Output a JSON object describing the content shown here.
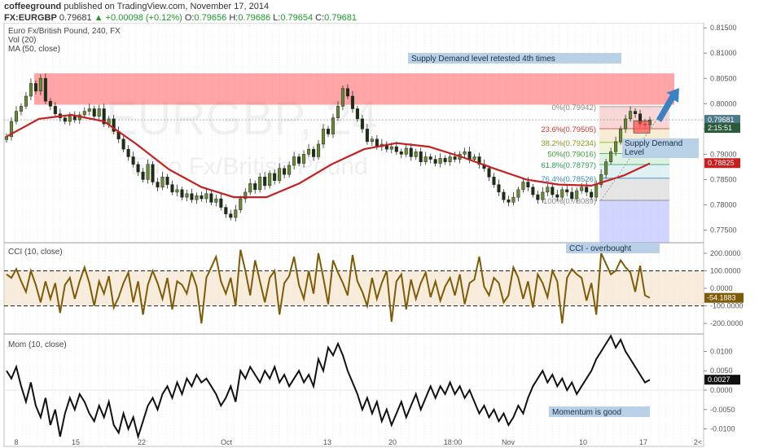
{
  "header": {
    "author": "coffeeground",
    "published_text": "published on TradingView.com, November 17, 2014",
    "symbol": "FX:EURGBP",
    "last": "0.79681",
    "change": "+0.00098 (+0.12%)",
    "o_label": "O:",
    "o": "0.79656",
    "h_label": "H:",
    "h": "0.79686",
    "l_label": "L:",
    "l": "0.79654",
    "c_label": "C:",
    "c": "0.79681"
  },
  "chart_data": [
    {
      "type": "candlestick",
      "panel": "price",
      "legend": [
        "Euro Fx/British Pound, 240, FX",
        "Vol (20)",
        "MA (50, close)"
      ],
      "watermark": "EURGBP, 24",
      "watermark_sub": "Euro Fx/British Pound",
      "x_ticks": [
        "8",
        "15",
        "22",
        "Oct",
        "13",
        "20",
        "18:00",
        "Nov",
        "10",
        "17",
        "2<"
      ],
      "y_ticks": [
        "0.81500",
        "0.81000",
        "0.80500",
        "0.80000",
        "0.79500",
        "0.79000",
        "0.78500",
        "0.78000",
        "0.77500"
      ],
      "ylim": [
        0.7725,
        0.816
      ],
      "series": [
        {
          "name": "EURGBP",
          "x": [
            0,
            6,
            12,
            18,
            24,
            30,
            36,
            42,
            48,
            54,
            60,
            66,
            72,
            78,
            84,
            90,
            96,
            102,
            108,
            114,
            120,
            126,
            132,
            138,
            144,
            150,
            156,
            162,
            168,
            174,
            180,
            186,
            192,
            198,
            204,
            210,
            216,
            222,
            228,
            234,
            240,
            246,
            252,
            258,
            264,
            270,
            276,
            282,
            288,
            294,
            300,
            306,
            312,
            318,
            324,
            330,
            336,
            342,
            348,
            354,
            360,
            366,
            372,
            378,
            384,
            390,
            396,
            402,
            408,
            414,
            420,
            426,
            432,
            438,
            444,
            450,
            456,
            462,
            468,
            474,
            480,
            486,
            492,
            498,
            504,
            510,
            516,
            522,
            528,
            534,
            540,
            546,
            552,
            558,
            564,
            570,
            576,
            582,
            588,
            594,
            600,
            606,
            612,
            618,
            624,
            630,
            636,
            642,
            648,
            654,
            660,
            666,
            672,
            678,
            684,
            690,
            696,
            702,
            708,
            714,
            720,
            726,
            732,
            738,
            744,
            750,
            756,
            762,
            768,
            774,
            780,
            786,
            792
          ],
          "close": [
            0.7935,
            0.7965,
            0.7985,
            0.7995,
            0.8015,
            0.804,
            0.8025,
            0.805,
            0.8005,
            0.7995,
            0.798,
            0.7972,
            0.7965,
            0.7975,
            0.7968,
            0.7978,
            0.7985,
            0.799,
            0.7975,
            0.799,
            0.796,
            0.797,
            0.7945,
            0.793,
            0.791,
            0.7895,
            0.788,
            0.7865,
            0.785,
            0.788,
            0.7845,
            0.7835,
            0.7855,
            0.784,
            0.7825,
            0.783,
            0.7815,
            0.7822,
            0.781,
            0.7818,
            0.7812,
            0.7822,
            0.7805,
            0.7812,
            0.7795,
            0.7782,
            0.7775,
            0.779,
            0.7812,
            0.7825,
            0.7842,
            0.783,
            0.7855,
            0.7838,
            0.7862,
            0.7848,
            0.7872,
            0.786,
            0.7878,
            0.7895,
            0.7882,
            0.79,
            0.791,
            0.7895,
            0.792,
            0.795,
            0.794,
            0.7972,
            0.7995,
            0.803,
            0.8015,
            0.799,
            0.797,
            0.795,
            0.7925,
            0.793,
            0.7915,
            0.792,
            0.791,
            0.7915,
            0.7905,
            0.79,
            0.7912,
            0.7895,
            0.7905,
            0.7885,
            0.7895,
            0.789,
            0.7882,
            0.7892,
            0.7885,
            0.7895,
            0.789,
            0.79,
            0.7905,
            0.789,
            0.7895,
            0.788,
            0.7872,
            0.7855,
            0.784,
            0.7825,
            0.781,
            0.7805,
            0.7815,
            0.783,
            0.7845,
            0.7835,
            0.782,
            0.781,
            0.7825,
            0.7835,
            0.782,
            0.7815,
            0.783,
            0.7825,
            0.7812,
            0.7828,
            0.7835,
            0.7825,
            0.7815,
            0.784,
            0.786,
            0.7885,
            0.7905,
            0.7925,
            0.795,
            0.797,
            0.7985,
            0.798,
            0.796,
            0.7958,
            0.7968
          ]
        },
        {
          "name": "MA (50, close)",
          "x": [
            0,
            40,
            80,
            120,
            160,
            200,
            240,
            280,
            320,
            360,
            400,
            440,
            480,
            520,
            560,
            600,
            640,
            680,
            720,
            760,
            792
          ],
          "values": [
            0.7935,
            0.797,
            0.7978,
            0.7965,
            0.792,
            0.787,
            0.7835,
            0.7815,
            0.7815,
            0.7842,
            0.788,
            0.791,
            0.7922,
            0.7915,
            0.7895,
            0.7872,
            0.785,
            0.784,
            0.7838,
            0.7858,
            0.7882
          ]
        }
      ],
      "zones": [
        {
          "label": "Supply Demand level retested 4th times",
          "from": 0.7998,
          "to": 0.806
        }
      ],
      "fib_levels": [
        {
          "label": "0%(0.79942)",
          "value": 0.79942,
          "color": "#888888"
        },
        {
          "label": "23.6%(0.79505)",
          "value": 0.79505,
          "color": "#d0342c"
        },
        {
          "label": "38.2%(0.79234)",
          "value": 0.79234,
          "color": "#8a9a1a"
        },
        {
          "label": "50%(0.79016)",
          "value": 0.79016,
          "color": "#3aa03a"
        },
        {
          "label": "61.8%(0.78797)",
          "value": 0.78797,
          "color": "#2f9a5a"
        },
        {
          "label": "76.4%(0.78526)",
          "value": 0.78526,
          "color": "#3a8ab8"
        },
        {
          "label": "100%(0.78089)",
          "value": 0.78089,
          "color": "#888888"
        }
      ],
      "annotations": [
        "Supply Demand level retested 4th times",
        "Supply Demand Level"
      ],
      "price_tags": [
        {
          "label": "0.79681",
          "value": 0.79681,
          "color": "#4a7a8a"
        },
        {
          "label": "2:15:51",
          "value": 0.7952,
          "color": "#2a5a3a"
        },
        {
          "label": "0.78825",
          "value": 0.78825,
          "color": "#c81e1e"
        }
      ]
    },
    {
      "type": "line",
      "panel": "cci",
      "legend": "CCI (10, close)",
      "annotation": "CCI - overbought",
      "y_ticks": [
        "200.0000",
        "100.0000",
        "0.0000",
        "-100.0000",
        "-200.0000"
      ],
      "ylim": [
        -260,
        260
      ],
      "bands": [
        -100,
        100
      ],
      "price_tag": {
        "label": "-54.1883",
        "value": -54.1883
      },
      "series": [
        {
          "x": [
            0,
            6,
            12,
            18,
            24,
            30,
            36,
            42,
            48,
            54,
            60,
            66,
            72,
            78,
            84,
            90,
            96,
            102,
            108,
            114,
            120,
            126,
            132,
            138,
            144,
            150,
            156,
            162,
            168,
            174,
            180,
            186,
            192,
            198,
            204,
            210,
            216,
            222,
            228,
            234,
            240,
            246,
            252,
            258,
            264,
            270,
            276,
            282,
            288,
            294,
            300,
            306,
            312,
            318,
            324,
            330,
            336,
            342,
            348,
            354,
            360,
            366,
            372,
            378,
            384,
            390,
            396,
            402,
            408,
            414,
            420,
            426,
            432,
            438,
            444,
            450,
            456,
            462,
            468,
            474,
            480,
            486,
            492,
            498,
            504,
            510,
            516,
            522,
            528,
            534,
            540,
            546,
            552,
            558,
            564,
            570,
            576,
            582,
            588,
            594,
            600,
            606,
            612,
            618,
            624,
            630,
            636,
            642,
            648,
            654,
            660,
            666,
            672,
            678,
            684,
            690,
            696,
            702,
            708,
            714,
            720,
            726,
            732,
            738,
            744,
            750,
            756,
            762,
            768,
            774,
            780,
            786,
            792
          ],
          "values": [
            80,
            60,
            110,
            40,
            -20,
            100,
            20,
            -80,
            40,
            -60,
            30,
            -140,
            20,
            60,
            -60,
            40,
            120,
            30,
            -100,
            40,
            -30,
            70,
            -110,
            -50,
            30,
            90,
            -80,
            40,
            -150,
            20,
            100,
            30,
            -60,
            60,
            -120,
            40,
            20,
            -30,
            90,
            10,
            -200,
            60,
            120,
            180,
            40,
            -30,
            60,
            -100,
            220,
            100,
            -40,
            160,
            40,
            -80,
            60,
            100,
            -150,
            30,
            70,
            180,
            20,
            -60,
            100,
            -30,
            200,
            60,
            -90,
            160,
            90,
            30,
            -40,
            190,
            40,
            -20,
            -100,
            60,
            -60,
            30,
            100,
            -190,
            40,
            80,
            -120,
            50,
            -60,
            30,
            90,
            -50,
            40,
            -70,
            10,
            60,
            -40,
            80,
            -90,
            30,
            50,
            180,
            10,
            -40,
            60,
            30,
            -80,
            -40,
            120,
            60,
            -60,
            40,
            -110,
            80,
            30,
            -50,
            100,
            40,
            -200,
            60,
            110,
            80,
            60,
            -70,
            30,
            -150,
            200,
            140,
            80,
            100,
            160,
            120,
            90,
            -20,
            130,
            -40,
            -54
          ]
        }
      ]
    },
    {
      "type": "line",
      "panel": "momentum",
      "legend": "Mom (10, close)",
      "annotation": "Momentum is good",
      "y_ticks": [
        "0.0100",
        "0.0050",
        "0.0000",
        "-0.0050",
        "-0.0100"
      ],
      "ylim": [
        -0.0145,
        0.0145
      ],
      "price_tag": {
        "label": "0.0027",
        "value": 0.0027
      },
      "series": [
        {
          "x": [
            0,
            6,
            12,
            18,
            24,
            30,
            36,
            42,
            48,
            54,
            60,
            66,
            72,
            78,
            84,
            90,
            96,
            102,
            108,
            114,
            120,
            126,
            132,
            138,
            144,
            150,
            156,
            162,
            168,
            174,
            180,
            186,
            192,
            198,
            204,
            210,
            216,
            222,
            228,
            234,
            240,
            246,
            252,
            258,
            264,
            270,
            276,
            282,
            288,
            294,
            300,
            306,
            312,
            318,
            324,
            330,
            336,
            342,
            348,
            354,
            360,
            366,
            372,
            378,
            384,
            390,
            396,
            402,
            408,
            414,
            420,
            426,
            432,
            438,
            444,
            450,
            456,
            462,
            468,
            474,
            480,
            486,
            492,
            498,
            504,
            510,
            516,
            522,
            528,
            534,
            540,
            546,
            552,
            558,
            564,
            570,
            576,
            582,
            588,
            594,
            600,
            606,
            612,
            618,
            624,
            630,
            636,
            642,
            648,
            654,
            660,
            666,
            672,
            678,
            684,
            690,
            696,
            702,
            708,
            714,
            720,
            726,
            732,
            738,
            744,
            750,
            756,
            762,
            768,
            774,
            780,
            786,
            792
          ],
          "values": [
            0.005,
            0.003,
            0.006,
            0.001,
            -0.003,
            0.002,
            -0.004,
            -0.007,
            -0.002,
            -0.009,
            -0.005,
            -0.012,
            -0.006,
            -0.002,
            -0.005,
            -0.001,
            -0.003,
            -0.006,
            -0.008,
            -0.004,
            -0.007,
            -0.003,
            -0.009,
            -0.011,
            -0.006,
            -0.01,
            -0.007,
            -0.012,
            -0.008,
            -0.004,
            -0.002,
            -0.005,
            -0.001,
            0.001,
            -0.002,
            0.002,
            -0.001,
            0.003,
            0.001,
            0.004,
            0.002,
            0.003,
            0.001,
            -0.001,
            -0.004,
            -0.002,
            0.001,
            -0.003,
            0.005,
            0.003,
            0.006,
            0.004,
            0.002,
            0.005,
            0.003,
            0.006,
            0.002,
            0.004,
            0.001,
            0.003,
            0.005,
            0.002,
            0.004,
            0.001,
            0.008,
            0.005,
            0.011,
            0.009,
            0.012,
            0.009,
            0.005,
            0.002,
            -0.001,
            -0.005,
            -0.002,
            -0.006,
            -0.003,
            -0.008,
            -0.005,
            -0.009,
            -0.006,
            -0.003,
            -0.007,
            -0.004,
            -0.001,
            -0.005,
            -0.002,
            0.001,
            -0.002,
            0.001,
            -0.001,
            0.002,
            -0.001,
            0.001,
            -0.002,
            0.0,
            -0.003,
            -0.006,
            -0.004,
            -0.007,
            -0.005,
            -0.008,
            -0.006,
            -0.009,
            -0.007,
            -0.004,
            -0.006,
            -0.002,
            0.001,
            0.003,
            0.005,
            0.002,
            0.004,
            0.001,
            0.003,
            0.0,
            0.002,
            -0.001,
            0.001,
            0.003,
            0.005,
            0.008,
            0.01,
            0.012,
            0.014,
            0.011,
            0.013,
            0.01,
            0.008,
            0.006,
            0.004,
            0.002,
            0.0027
          ]
        }
      ]
    }
  ]
}
